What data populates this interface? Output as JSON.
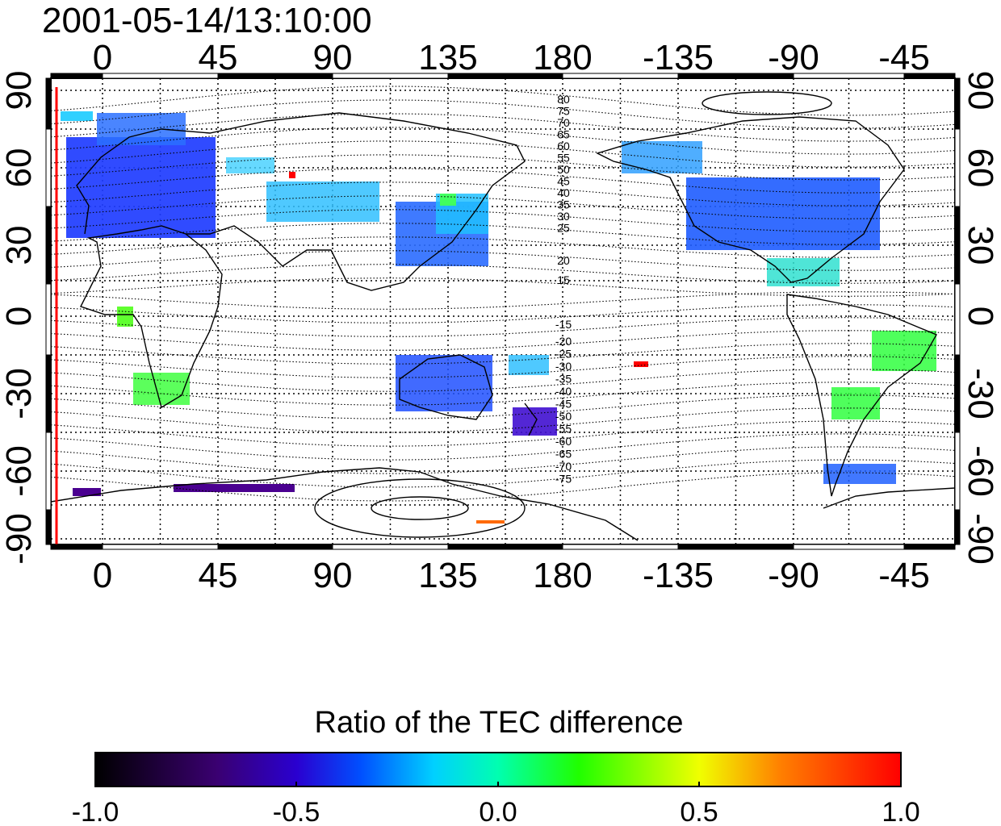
{
  "title": "2001-05-14/13:10:00",
  "colorbar": {
    "title": "Ratio of the TEC difference",
    "tick_labels": [
      "-1.0",
      "-0.5",
      "0.0",
      "0.5",
      "1.0"
    ],
    "colors": [
      "#000000",
      "#4b0082",
      "#0000ff",
      "#00ffff",
      "#00ff00",
      "#ffff00",
      "#ff8000",
      "#ff0000"
    ]
  },
  "axes": {
    "lon_ticks": [
      "0",
      "45",
      "90",
      "135",
      "180",
      "-135",
      "-90",
      "-45"
    ],
    "lat_ticks_left": [
      "90",
      "60",
      "30",
      "0",
      "-30",
      "-60",
      "-90"
    ],
    "lat_ticks_right": [
      "90",
      "60",
      "30",
      "0",
      "-30",
      "-60",
      "-90"
    ]
  },
  "contour_labels": {
    "north": [
      "80",
      "75",
      "70",
      "65",
      "60",
      "55",
      "50",
      "45",
      "40",
      "35",
      "30",
      "25",
      "20",
      "15"
    ],
    "south": [
      "-15",
      "-20",
      "-25",
      "-30",
      "-35",
      "-40",
      "-45",
      "-50",
      "-55",
      "-60",
      "-65",
      "-70",
      "-75"
    ]
  },
  "colors": {
    "terminator_line": "#ff0000",
    "coastline": "#000000",
    "grid": "#000000"
  }
}
